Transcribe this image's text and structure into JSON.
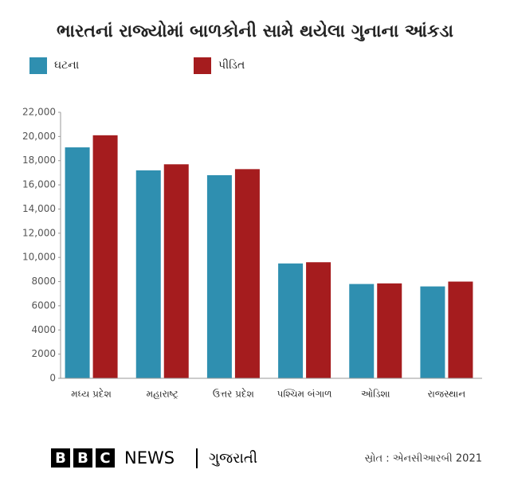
{
  "chart_data": {
    "type": "bar",
    "title": "ભારતનાં રાજ્યોમાં બાળકોની સામે થયેલા ગુનાના આંકડા",
    "categories": [
      "મધ્ય પ્રદેશ",
      "મહારાષ્ટ્ર",
      "ઉત્તર પ્રદેશ",
      "પશ્ચિમ બંગાળ",
      "ઓડિશા",
      "રાજસ્થાન"
    ],
    "series": [
      {
        "name": "ઘટના",
        "color": "#2f8fb0",
        "values": [
          19100,
          17200,
          16800,
          9500,
          7800,
          7600
        ]
      },
      {
        "name": "પીડિત",
        "color": "#a51c1e",
        "values": [
          20100,
          17700,
          17300,
          9600,
          7850,
          8000
        ]
      }
    ],
    "ylim": [
      0,
      22000
    ],
    "yticks": [
      0,
      2000,
      4000,
      6000,
      8000,
      {
        "value": 10000,
        "label": "10,000"
      },
      {
        "value": 12000,
        "label": "12,000"
      },
      {
        "value": 14000,
        "label": "14,000"
      },
      {
        "value": 16000,
        "label": "16,000"
      },
      {
        "value": 18000,
        "label": "18,000"
      },
      {
        "value": 20000,
        "label": "20,000"
      },
      {
        "value": 22000,
        "label": "22,000"
      }
    ],
    "grid": false,
    "source": "સ્રોત : એનસીઆરબી 2021"
  },
  "footer": {
    "logo": [
      "B",
      "B",
      "C"
    ],
    "brand": "NEWS",
    "language": "ગુજરાતી"
  }
}
